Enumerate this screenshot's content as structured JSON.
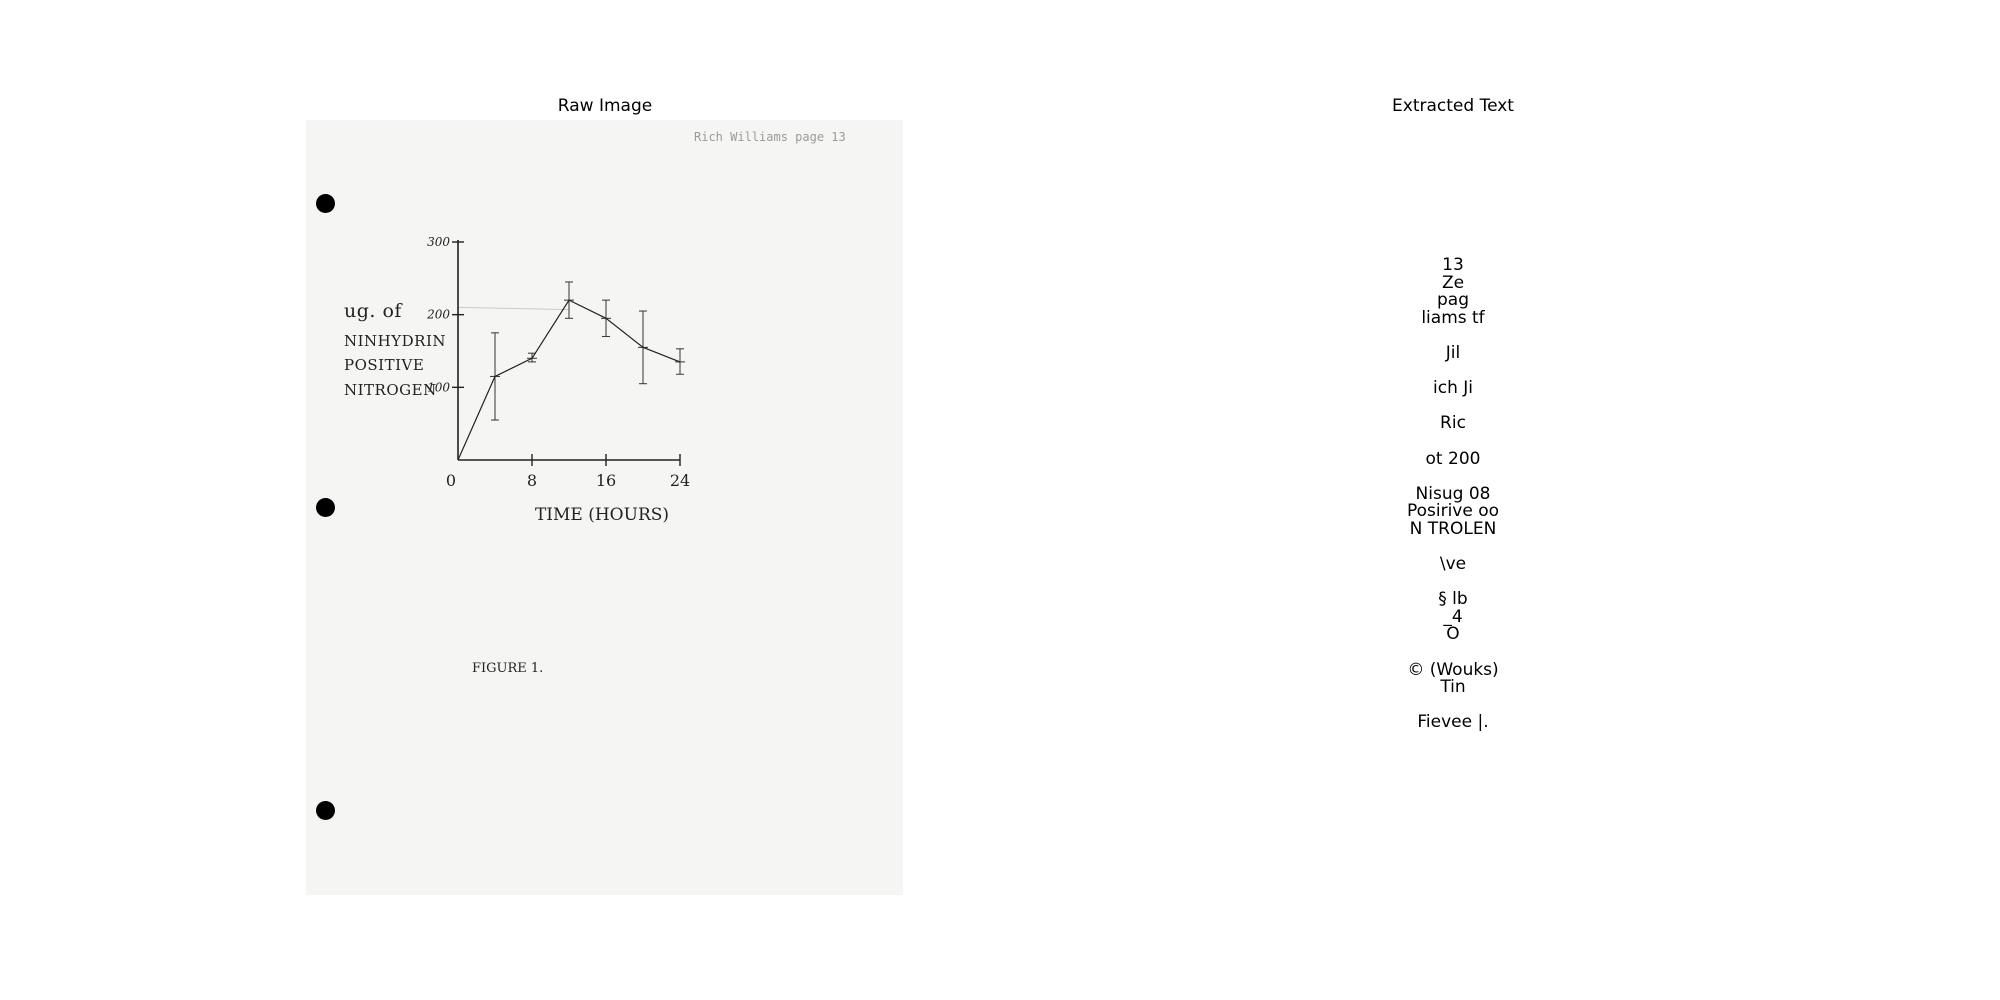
{
  "panels": {
    "raw_title": "Raw Image",
    "text_title": "Extracted Text"
  },
  "document": {
    "header_stamp": "Rich Williams  page 13",
    "y_label_lines": [
      "ug. of",
      "NINHYDRIN",
      "POSITIVE",
      "NITROGEN"
    ],
    "x_label": "TIME (HOURS)",
    "figure_caption": "FIGURE 1."
  },
  "chart_data": {
    "type": "line",
    "title": "",
    "xlabel": "TIME (HOURS)",
    "ylabel": "ug. of NINHYDRIN POSITIVE NITROGEN",
    "xlim": [
      0,
      24
    ],
    "ylim": [
      0,
      300
    ],
    "x_ticks": [
      "0",
      "8",
      "16",
      "24"
    ],
    "y_ticks": [
      "100",
      "200",
      "300"
    ],
    "series": [
      {
        "x": [
          0,
          4,
          8,
          12,
          16,
          20,
          24
        ],
        "y": [
          0,
          115,
          140,
          220,
          195,
          155,
          135
        ],
        "err_low": [
          0,
          55,
          135,
          195,
          170,
          105,
          118
        ],
        "err_high": [
          0,
          175,
          147,
          245,
          220,
          205,
          153
        ]
      }
    ],
    "reference_line_y": 210,
    "grid": false,
    "legend": "none"
  },
  "ocr_lines": [
    "13",
    "Ze",
    "pag",
    "liams tf",
    "",
    "Jil",
    "",
    "ich Ji",
    "",
    "Ric",
    "",
    "ot 200",
    "",
    "Nisug 08",
    "Posirive oo",
    "N TROLEN",
    "",
    "\\ve",
    "",
    "§ lb",
    "_4",
    "O",
    "",
    "© (Wouks)",
    "Tin",
    "",
    "Fievee |."
  ],
  "colors": {
    "paper": "#f5f6f4",
    "ink": "#222222",
    "stamp": "#9a9a9a"
  }
}
